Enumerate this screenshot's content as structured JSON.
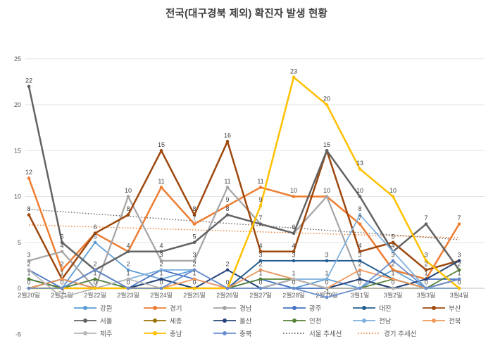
{
  "title": "전국(대구경북 제외) 확진자 발생 현황",
  "chart_data": {
    "type": "line",
    "title": "전국(대구경북 제외) 확진자 발생 현황",
    "categories": [
      "2월20일",
      "2월21일",
      "2월22일",
      "2월23일",
      "2월24일",
      "2월25일",
      "2월26일",
      "2월27일",
      "2월28일",
      "2월29일",
      "3월1일",
      "3월2일",
      "3월3일",
      "3월4일"
    ],
    "y_ticks": [
      -5,
      0,
      5,
      10,
      15,
      20,
      25
    ],
    "ylim": [
      -5,
      25
    ],
    "grid": true,
    "legend_position": "bottom",
    "series": [
      {
        "name": "강원",
        "color": "#5B9BD5",
        "width": 1.75,
        "values": [
          0,
          0,
          5,
          2,
          1,
          2,
          0,
          1,
          0,
          1,
          0,
          2,
          0,
          0
        ]
      },
      {
        "name": "경기",
        "color": "#ED7D31",
        "width": 2.5,
        "values": [
          12,
          2,
          6,
          4,
          11,
          7,
          9,
          11,
          10,
          10,
          7,
          2,
          1,
          7
        ]
      },
      {
        "name": "경남",
        "color": "#A5A5A5",
        "width": 2.25,
        "values": [
          3,
          4,
          0,
          10,
          3,
          3,
          11,
          7,
          6,
          10,
          1,
          0,
          0,
          1
        ]
      },
      {
        "name": "광주",
        "color": "#4472C4",
        "width": 1.75,
        "values": [
          2,
          0,
          1,
          0,
          2,
          1,
          0,
          1,
          0,
          0,
          1,
          0,
          1,
          1
        ]
      },
      {
        "name": "대전",
        "color": "#255E91",
        "width": 2.0,
        "values": [
          0,
          1,
          0,
          0,
          1,
          0,
          0,
          3,
          3,
          3,
          3,
          1,
          0,
          1
        ]
      },
      {
        "name": "부산",
        "color": "#9E480E",
        "width": 2.5,
        "values": [
          8,
          1,
          6,
          8,
          15,
          8,
          16,
          4,
          4,
          15,
          4,
          5,
          2,
          3
        ]
      },
      {
        "name": "서울",
        "color": "#636363",
        "width": 2.5,
        "values": [
          22,
          5,
          2,
          4,
          4,
          5,
          8,
          7,
          6,
          15,
          10,
          4,
          7,
          2
        ]
      },
      {
        "name": "세종",
        "color": "#997300",
        "width": 1.75,
        "values": [
          0,
          0,
          0,
          0,
          0,
          0,
          0,
          0,
          1,
          0,
          0,
          0,
          0,
          0
        ]
      },
      {
        "name": "울산",
        "color": "#264478",
        "width": 2.0,
        "values": [
          1,
          0,
          2,
          0,
          1,
          0,
          2,
          0,
          1,
          0,
          1,
          0,
          1,
          3
        ]
      },
      {
        "name": "인천",
        "color": "#548235",
        "width": 1.75,
        "values": [
          1,
          0,
          1,
          0,
          0,
          0,
          0,
          1,
          1,
          0,
          0,
          1,
          0,
          2
        ]
      },
      {
        "name": "전남",
        "color": "#7CAFDD",
        "width": 1.75,
        "values": [
          0,
          0,
          0,
          1,
          2,
          2,
          0,
          2,
          1,
          1,
          8,
          4,
          0,
          0
        ]
      },
      {
        "name": "전북",
        "color": "#F1975A",
        "width": 1.75,
        "values": [
          0,
          1,
          0,
          0,
          0,
          1,
          0,
          2,
          1,
          0,
          2,
          1,
          0,
          1
        ]
      },
      {
        "name": "제주",
        "color": "#B7B7B7",
        "width": 1.75,
        "values": [
          2,
          -1,
          0,
          1,
          0,
          2,
          0,
          0,
          1,
          0,
          0,
          0,
          0,
          1
        ]
      },
      {
        "name": "충남",
        "color": "#FFC000",
        "width": 2.5,
        "values": [
          0,
          0,
          0,
          0,
          0,
          0,
          0,
          9,
          23,
          20,
          13,
          10,
          3,
          0
        ]
      },
      {
        "name": "충북",
        "color": "#698ED0",
        "width": 1.75,
        "values": [
          0,
          0,
          2,
          0,
          0,
          2,
          0,
          0,
          0,
          -1,
          0,
          3,
          0,
          1
        ]
      }
    ],
    "trendlines": [
      {
        "name": "서울 추세선",
        "color": "#636363",
        "start": 8.6,
        "end": 5.3
      },
      {
        "name": "경기 추세선",
        "color": "#ED7D31",
        "start": 6.9,
        "end": 5.5
      }
    ],
    "legend_rows": [
      [
        "강원",
        "경기",
        "경남",
        "광주",
        "대전",
        "부산"
      ],
      [
        "서울",
        "세종",
        "울산",
        "인천",
        "전남",
        "전북"
      ],
      [
        "제주",
        "충남",
        "충북",
        "서울 추세선",
        "경기 추세선"
      ]
    ]
  }
}
